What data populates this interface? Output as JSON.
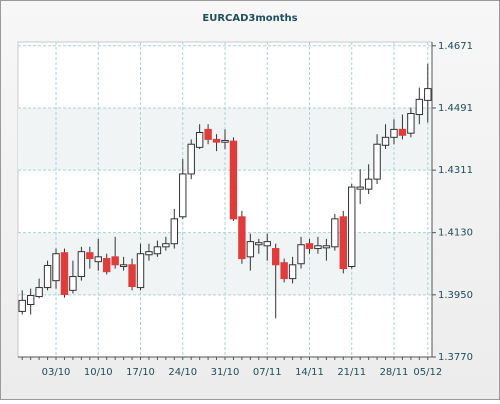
{
  "chart_data": {
    "type": "candlestick",
    "title": "EURCAD3months",
    "categories": [
      null,
      null,
      null,
      null,
      "03/10",
      null,
      null,
      null,
      null,
      "10/10",
      null,
      null,
      null,
      null,
      "17/10",
      null,
      null,
      null,
      null,
      "24/10",
      null,
      null,
      null,
      null,
      "31/10",
      null,
      null,
      null,
      null,
      "07/11",
      null,
      null,
      null,
      null,
      "14/11",
      null,
      null,
      null,
      null,
      "21/11",
      null,
      null,
      null,
      null,
      "28/11",
      null,
      null,
      null,
      "05/12"
    ],
    "open": [
      1.3902,
      1.3922,
      1.3945,
      1.3971,
      1.3991,
      1.4072,
      1.3963,
      1.4003,
      1.4072,
      1.4046,
      1.4055,
      1.406,
      1.4032,
      1.4037,
      1.3971,
      1.4066,
      1.4069,
      1.4089,
      1.4098,
      1.4176,
      1.43,
      1.4377,
      1.4429,
      1.44,
      1.4392,
      1.4395,
      1.4176,
      1.406,
      1.4095,
      1.4092,
      1.4084,
      1.4043,
      1.3997,
      1.404,
      1.4098,
      1.4084,
      1.4086,
      1.4089,
      1.4176,
      1.4032,
      1.4256,
      1.4256,
      1.4285,
      1.4383,
      1.4406,
      1.4429,
      1.4418,
      1.4472,
      1.4513
    ],
    "high": [
      1.3963,
      1.3968,
      1.3997,
      1.4049,
      1.4084,
      1.4084,
      1.4049,
      1.4089,
      1.4089,
      1.4112,
      1.4069,
      1.4118,
      1.406,
      1.4055,
      1.4098,
      1.4098,
      1.4107,
      1.4118,
      1.4199,
      1.4343,
      1.44,
      1.4444,
      1.4444,
      1.4415,
      1.4429,
      1.4406,
      1.4193,
      1.4127,
      1.4112,
      1.4127,
      1.4098,
      1.4055,
      1.406,
      1.4118,
      1.4112,
      1.4118,
      1.4112,
      1.4184,
      1.4193,
      1.4271,
      1.4314,
      1.4328,
      1.4415,
      1.4444,
      1.4458,
      1.4472,
      1.4492,
      1.455,
      1.4619
    ],
    "low": [
      1.3893,
      1.3893,
      1.394,
      1.3963,
      1.3968,
      1.3942,
      1.3954,
      1.3991,
      1.4026,
      1.402,
      1.4009,
      1.4026,
      1.402,
      1.3963,
      1.3963,
      1.4049,
      1.406,
      1.4078,
      1.4084,
      1.417,
      1.4285,
      1.4372,
      1.4386,
      1.4366,
      1.4372,
      1.4164,
      1.404,
      1.402,
      1.4069,
      1.4049,
      1.3882,
      1.3986,
      1.3983,
      1.4026,
      1.4069,
      1.4069,
      1.4049,
      1.4078,
      1.4012,
      1.4026,
      1.4213,
      1.4242,
      1.4271,
      1.4372,
      1.4386,
      1.44,
      1.4406,
      1.4444,
      1.4449
    ],
    "close": [
      1.3934,
      1.3948,
      1.3971,
      1.4035,
      1.4069,
      1.3951,
      1.4003,
      1.4075,
      1.4055,
      1.406,
      1.4017,
      1.4037,
      1.4037,
      1.3974,
      1.4069,
      1.4075,
      1.4089,
      1.4098,
      1.417,
      1.43,
      1.4386,
      1.442,
      1.44,
      1.4392,
      1.4397,
      1.417,
      1.4055,
      1.4104,
      1.4101,
      1.4104,
      1.4037,
      1.3997,
      1.4037,
      1.4095,
      1.4084,
      1.4092,
      1.4092,
      1.417,
      1.4026,
      1.4262,
      1.4262,
      1.4285,
      1.4386,
      1.4406,
      1.4429,
      1.4412,
      1.4475,
      1.4516,
      1.4547
    ],
    "up_color": "#ffffff",
    "down_color": "#e03c3c",
    "ylim": [
      1.377,
      1.4682
    ],
    "yticks": [
      {
        "value": 1.377,
        "label": "1.3770"
      },
      {
        "value": 1.395,
        "label": "1.3950"
      },
      {
        "value": 1.413,
        "label": "1.4130"
      },
      1.4311,
      1.4491,
      1.4671
    ],
    "grid": true
  }
}
